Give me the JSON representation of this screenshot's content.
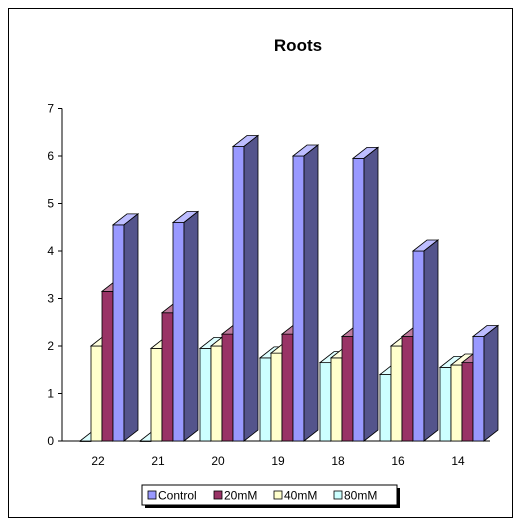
{
  "chart_data": {
    "type": "bar",
    "title": "Roots",
    "xlabel": "",
    "ylabel": "",
    "categories": [
      "22",
      "21",
      "20",
      "19",
      "18",
      "16",
      "14"
    ],
    "series": [
      {
        "name": "Control",
        "values": [
          4.55,
          4.6,
          6.2,
          6.0,
          5.95,
          4.0,
          2.2
        ]
      },
      {
        "name": "20mM",
        "values": [
          3.15,
          2.7,
          2.25,
          2.25,
          2.2,
          2.2,
          1.65
        ]
      },
      {
        "name": "40mM",
        "values": [
          2.0,
          1.95,
          2.0,
          1.85,
          1.75,
          2.0,
          1.6
        ]
      },
      {
        "name": "80mM",
        "values": [
          0.0,
          0.0,
          1.95,
          1.75,
          1.65,
          1.4,
          1.55
        ]
      }
    ],
    "ylim": [
      0,
      7
    ],
    "yticks": [
      "0",
      "1",
      "2",
      "3",
      "4",
      "5",
      "6",
      "7"
    ],
    "grid": false,
    "legend_position": "bottom",
    "colors": {
      "Control": "#9999ff",
      "20mM": "#993366",
      "40mM": "#ffffcc",
      "80mM": "#ccffff"
    }
  }
}
